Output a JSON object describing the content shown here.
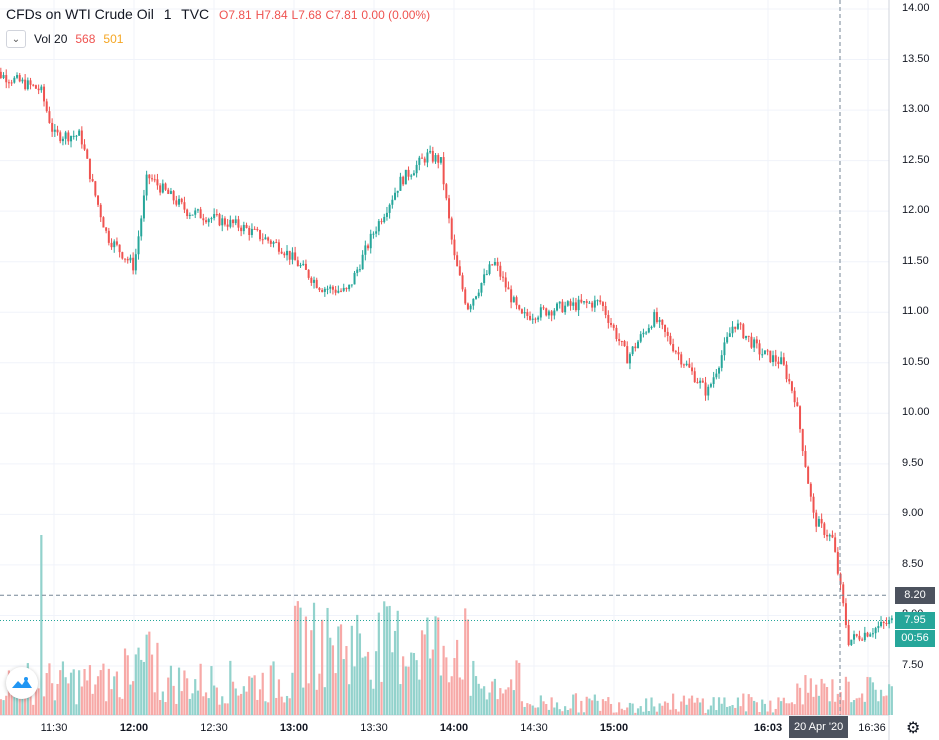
{
  "header": {
    "symbol": "CFDs on WTI Crude Oil",
    "interval": "1",
    "exchange": "TVC",
    "open": "O7.81",
    "high": "H7.84",
    "low": "L7.68",
    "close": "C7.81",
    "change": "0.00 (0.00%)"
  },
  "volume": {
    "label": "Vol 20",
    "val1": "568",
    "val2": "501"
  },
  "y_axis": [
    "14.00",
    "13.50",
    "13.00",
    "12.50",
    "12.00",
    "11.50",
    "11.00",
    "10.50",
    "10.00",
    "9.50",
    "9.00",
    "8.50",
    "8.00",
    "7.50"
  ],
  "x_axis": [
    {
      "label": "11:30",
      "bold": false
    },
    {
      "label": "12:00",
      "bold": true
    },
    {
      "label": "12:30",
      "bold": false
    },
    {
      "label": "13:00",
      "bold": true
    },
    {
      "label": "13:30",
      "bold": false
    },
    {
      "label": "14:00",
      "bold": true
    },
    {
      "label": "14:30",
      "bold": false
    },
    {
      "label": "15:00",
      "bold": true
    },
    {
      "label": "16:03",
      "bold": true
    },
    {
      "label": "16:36",
      "bold": false
    }
  ],
  "price_tags": {
    "crosshair": "8.20",
    "last": "7.95",
    "countdown": "00:56"
  },
  "time_tag": "20 Apr '20",
  "colors": {
    "up": "#26a69a",
    "down": "#ef5350",
    "vol_up": "#92d2cc",
    "vol_down": "#f7a9a7",
    "grid": "#f0f3fa",
    "tag_last": "#26a69a",
    "tag_cross": "#4c525e"
  },
  "icons": {
    "logo": "tradingview-logo-icon",
    "settings": "gear-icon",
    "chevron": "chevron-down-icon"
  },
  "chart_data": {
    "type": "candlestick",
    "title": "CFDs on WTI Crude Oil · 1 · TVC",
    "ylim": [
      7.2,
      14.1
    ],
    "x_range": [
      "11:05",
      "16:48"
    ],
    "key_points": [
      {
        "t": "11:05",
        "price": 13.4
      },
      {
        "t": "11:25",
        "price": 13.2
      },
      {
        "t": "11:30",
        "price": 12.75
      },
      {
        "t": "11:40",
        "price": 12.75
      },
      {
        "t": "11:45",
        "price": 12.2
      },
      {
        "t": "11:50",
        "price": 11.75
      },
      {
        "t": "12:00",
        "price": 11.45
      },
      {
        "t": "12:05",
        "price": 12.35
      },
      {
        "t": "12:20",
        "price": 12.0
      },
      {
        "t": "12:40",
        "price": 11.85
      },
      {
        "t": "12:55",
        "price": 11.65
      },
      {
        "t": "13:10",
        "price": 11.25
      },
      {
        "t": "13:20",
        "price": 11.2
      },
      {
        "t": "13:30",
        "price": 11.8
      },
      {
        "t": "13:40",
        "price": 12.3
      },
      {
        "t": "13:50",
        "price": 12.55
      },
      {
        "t": "13:55",
        "price": 12.5
      },
      {
        "t": "14:00",
        "price": 11.55
      },
      {
        "t": "14:05",
        "price": 11.05
      },
      {
        "t": "14:15",
        "price": 11.5
      },
      {
        "t": "14:25",
        "price": 10.95
      },
      {
        "t": "14:40",
        "price": 11.05
      },
      {
        "t": "14:55",
        "price": 11.1
      },
      {
        "t": "15:05",
        "price": 10.55
      },
      {
        "t": "15:15",
        "price": 10.95
      },
      {
        "t": "15:25",
        "price": 10.55
      },
      {
        "t": "15:35",
        "price": 10.2
      },
      {
        "t": "15:45",
        "price": 10.9
      },
      {
        "t": "15:55",
        "price": 10.6
      },
      {
        "t": "16:03",
        "price": 10.5
      },
      {
        "t": "16:08",
        "price": 10.15
      },
      {
        "t": "16:15",
        "price": 8.95
      },
      {
        "t": "16:22",
        "price": 8.75
      },
      {
        "t": "16:28",
        "price": 7.75
      },
      {
        "t": "16:36",
        "price": 7.85
      },
      {
        "t": "16:45",
        "price": 7.95
      }
    ],
    "last_price": 7.95,
    "crosshair_price": 8.2,
    "volume_label": "Vol 20"
  }
}
